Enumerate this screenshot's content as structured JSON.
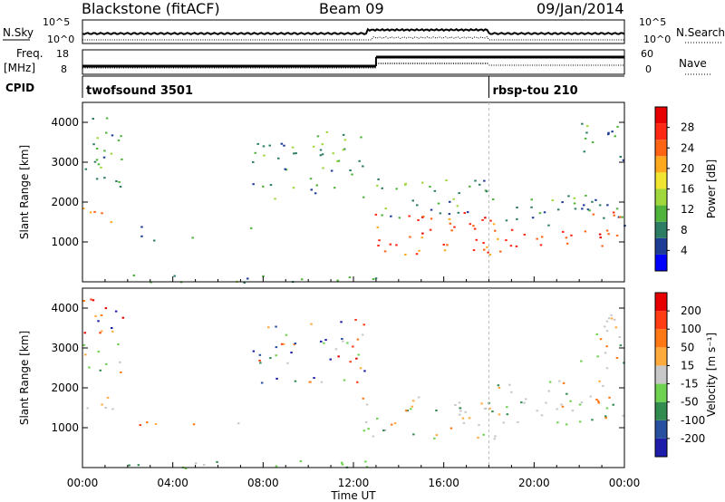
{
  "header": {
    "title": "Blackstone (fitACF)",
    "beam": "Beam 09",
    "date": "09/Jan/2014"
  },
  "meta_panel": {
    "nsky_label": "N.Sky",
    "nsky_ticks": [
      "10^5",
      "10^0"
    ],
    "nsearch_label": "N.Search",
    "nsearch_ticks": [
      "10^5",
      "10^0"
    ],
    "freq_label": "Freq.",
    "freq_unit": "[MHz]",
    "freq_ticks": [
      "18",
      "8"
    ],
    "nave_label": "Nave",
    "nave_ticks": [
      "60",
      "0"
    ],
    "cpid_label": "CPID",
    "cpid_segments": [
      {
        "name": "twofsound 3501",
        "start_hour": 0
      },
      {
        "name": "rbsp-tou 210",
        "start_hour": 18
      }
    ]
  },
  "chart_data": [
    {
      "type": "heatmap",
      "name": "power",
      "xlabel": "",
      "ylabel": "Slant Range [km]",
      "xlim": [
        0,
        24
      ],
      "ylim": [
        0,
        4500
      ],
      "yticks": [
        1000,
        2000,
        3000,
        4000
      ],
      "colorbar": {
        "label": "Power [dB]",
        "ticks": [
          "28",
          "24",
          "20",
          "16",
          "12",
          "8",
          "4"
        ],
        "colors": [
          "#0000ff",
          "#1e3c96",
          "#2d7d64",
          "#50b43c",
          "#a0d73c",
          "#f0e632",
          "#ffaa1e",
          "#ff6414",
          "#ff2814",
          "#e60000"
        ]
      },
      "echo_regions": [
        {
          "t": [
            0.0,
            1.5
          ],
          "range": [
            1400,
            1900
          ],
          "level": 0.7
        },
        {
          "t": [
            0.0,
            1.8
          ],
          "range": [
            2300,
            4300
          ],
          "level": 0.25
        },
        {
          "t": [
            2.5,
            3.5
          ],
          "range": [
            1000,
            1400
          ],
          "level": 0.2
        },
        {
          "t": [
            4.3,
            5.2
          ],
          "range": [
            1100,
            1300
          ],
          "level": 0.2
        },
        {
          "t": [
            6.8,
            7.5
          ],
          "range": [
            1100,
            1400
          ],
          "level": 0.2
        },
        {
          "t": [
            7.5,
            9.5
          ],
          "range": [
            2100,
            3600
          ],
          "level": 0.3
        },
        {
          "t": [
            10.0,
            12.5
          ],
          "range": [
            2100,
            3800
          ],
          "level": 0.3
        },
        {
          "t": [
            12.3,
            18.5
          ],
          "range": [
            700,
            1800
          ],
          "level": 0.8
        },
        {
          "t": [
            13.0,
            18.0
          ],
          "range": [
            1600,
            2600
          ],
          "level": 0.3
        },
        {
          "t": [
            18.0,
            24.0
          ],
          "range": [
            900,
            1400
          ],
          "level": 0.85
        },
        {
          "t": [
            18.0,
            24.0
          ],
          "range": [
            1400,
            2200
          ],
          "level": 0.25
        },
        {
          "t": [
            22.5,
            24.0
          ],
          "range": [
            1600,
            2000
          ],
          "level": 0.9
        },
        {
          "t": [
            22.0,
            24.0
          ],
          "range": [
            3000,
            4000
          ],
          "level": 0.25
        },
        {
          "t": [
            2.0,
            13.0
          ],
          "range": [
            0,
            200
          ],
          "level": 0.3
        }
      ]
    },
    {
      "type": "heatmap",
      "name": "velocity",
      "xlabel": "Time UT",
      "ylabel": "Slant Range [km]",
      "xlim": [
        0,
        24
      ],
      "ylim": [
        0,
        4500
      ],
      "xticks": [
        "00:00",
        "04:00",
        "08:00",
        "12:00",
        "16:00",
        "20:00",
        "00:00"
      ],
      "yticks": [
        1000,
        2000,
        3000,
        4000
      ],
      "colorbar": {
        "label": "Velocity [m s⁻¹]",
        "ticks": [
          "200",
          "100",
          "50",
          "15",
          "-15",
          "-50",
          "-100",
          "-200"
        ],
        "colors": [
          "#1e1eaa",
          "#2850a0",
          "#328c50",
          "#6ed250",
          "#c8c8c8",
          "#ffaa3c",
          "#ff7814",
          "#ff3c14",
          "#e60000"
        ]
      },
      "echo_regions": [
        {
          "t": [
            0.0,
            1.5
          ],
          "range": [
            1400,
            1900
          ],
          "v": "gray"
        },
        {
          "t": [
            0.0,
            1.8
          ],
          "range": [
            2300,
            4300
          ],
          "v": "mixed"
        },
        {
          "t": [
            2.5,
            3.5
          ],
          "range": [
            1000,
            1400
          ],
          "v": "orange"
        },
        {
          "t": [
            4.3,
            5.2
          ],
          "range": [
            1100,
            1300
          ],
          "v": "orange"
        },
        {
          "t": [
            6.8,
            7.5
          ],
          "range": [
            1100,
            1400
          ],
          "v": "orange"
        },
        {
          "t": [
            7.5,
            9.5
          ],
          "range": [
            2100,
            3600
          ],
          "v": "mixed"
        },
        {
          "t": [
            10.0,
            12.5
          ],
          "range": [
            2100,
            3800
          ],
          "v": "mixed"
        },
        {
          "t": [
            12.3,
            18.5
          ],
          "range": [
            700,
            1800
          ],
          "v": "gray"
        },
        {
          "t": [
            18.0,
            24.0
          ],
          "range": [
            1100,
            2200
          ],
          "v": "gray"
        },
        {
          "t": [
            22.0,
            24.0
          ],
          "range": [
            2500,
            4000
          ],
          "v": "gray"
        },
        {
          "t": [
            2.0,
            13.0
          ],
          "range": [
            0,
            200
          ],
          "v": "green"
        }
      ]
    }
  ],
  "colors": {
    "axis": "#000000",
    "marker_line": "#bbbbbb"
  }
}
